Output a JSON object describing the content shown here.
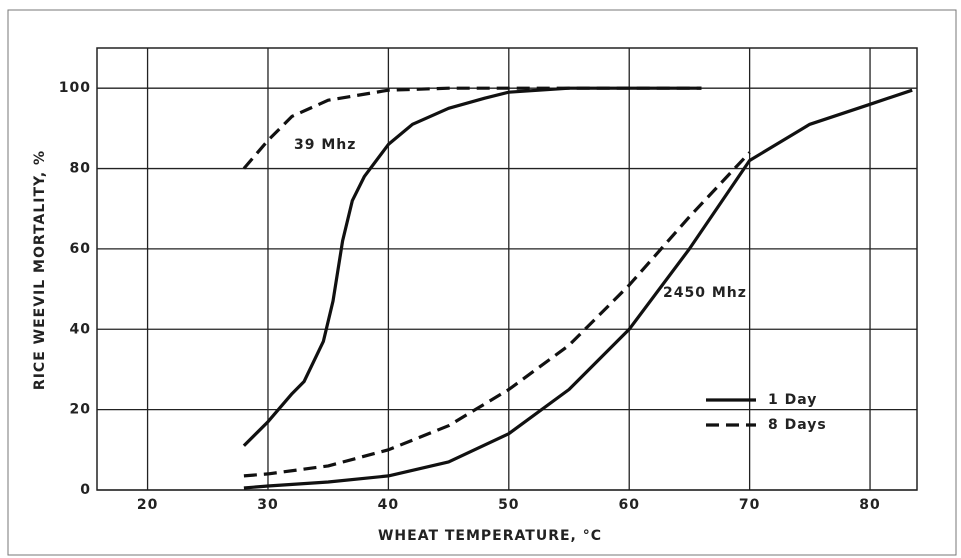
{
  "chart_data": {
    "type": "line",
    "xlabel": "WHEAT TEMPERATURE, °C",
    "ylabel": "RICE WEEVIL MORTALITY, %",
    "xlim": [
      15.8,
      83.9
    ],
    "ylim": [
      0,
      110
    ],
    "xticks": [
      20,
      30,
      40,
      50,
      60,
      70,
      80
    ],
    "yticks": [
      0,
      20,
      40,
      60,
      80,
      100
    ],
    "grid": true,
    "legend": "lower right",
    "series": [
      {
        "name": "1 Day",
        "dashed": false,
        "color": "#111111",
        "x": [
          28,
          30,
          32,
          33,
          34.6,
          35.4,
          36.2,
          37,
          38,
          40,
          42,
          45,
          48,
          50,
          55,
          60,
          66
        ],
        "values": [
          11,
          17,
          24,
          27,
          37,
          47,
          62,
          72,
          78,
          86,
          91,
          95,
          97.5,
          99,
          100,
          100,
          100
        ]
      },
      {
        "name": "8 Days",
        "dashed": true,
        "color": "#111111",
        "x": [
          28,
          30,
          32,
          35,
          40,
          45,
          50,
          55,
          60,
          66
        ],
        "values": [
          80,
          87,
          93,
          97,
          99.5,
          100,
          100,
          100,
          100,
          100
        ]
      },
      {
        "name": "1 Day",
        "dashed": false,
        "color": "#111111",
        "x": [
          28,
          30,
          35,
          40,
          45,
          50,
          55,
          60,
          65,
          70,
          75,
          80,
          83.5
        ],
        "values": [
          0.5,
          1,
          2,
          3.5,
          7,
          14,
          25,
          40,
          60,
          82,
          91,
          96,
          99.5
        ]
      },
      {
        "name": "8 Days",
        "dashed": true,
        "color": "#111111",
        "x": [
          28,
          30,
          35,
          40,
          45,
          50,
          55,
          60,
          65,
          70
        ],
        "values": [
          3.5,
          4,
          6,
          10,
          16,
          25,
          36,
          51,
          68,
          84
        ]
      }
    ],
    "annotations": [
      "39 Mhz",
      "2450 Mhz"
    ]
  }
}
